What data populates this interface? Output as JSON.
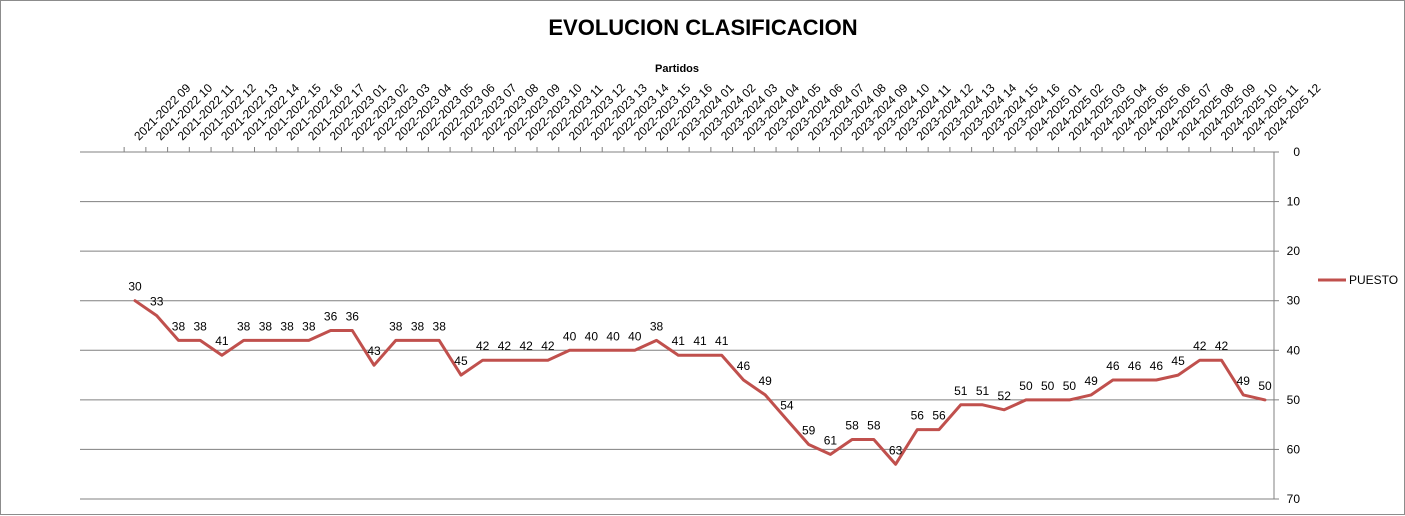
{
  "chart_data": {
    "type": "line",
    "title": "EVOLUCION CLASIFICACION",
    "xlabel": "Partidos",
    "ylabel": "",
    "ylim": [
      0,
      70
    ],
    "y_reversed": true,
    "y_ticks": [
      0,
      10,
      20,
      30,
      40,
      50,
      60,
      70
    ],
    "x_axis_position": "top",
    "y_axis_position": "right",
    "grid": "horizontal",
    "legend": "right",
    "categories": [
      "2021-2022 09",
      "2021-2022 10",
      "2021-2022 11",
      "2021-2022 12",
      "2021-2022 13",
      "2021-2022 14",
      "2021-2022 15",
      "2021-2022 16",
      "2021-2022 17",
      "2022-2023 01",
      "2022-2023 02",
      "2022-2023 03",
      "2022-2023 04",
      "2022-2023 05",
      "2022-2023 06",
      "2022-2023 07",
      "2022-2023 08",
      "2022-2023 09",
      "2022-2023 10",
      "2022-2023 11",
      "2022-2023 12",
      "2022-2023 13",
      "2022-2023 14",
      "2022-2023 15",
      "2022-2023 16",
      "2023-2024 01",
      "2023-2024 02",
      "2023-2024 03",
      "2023-2024 04",
      "2023-2024 05",
      "2023-2024 06",
      "2023-2024 07",
      "2023-2024 08",
      "2023-2024 09",
      "2023-2024 10",
      "2023-2024 11",
      "2023-2024 12",
      "2023-2024 13",
      "2023-2024 14",
      "2023-2024 15",
      "2023-2024 16",
      "2024-2025 01",
      "2024-2025 02",
      "2024-2025 03",
      "2024-2025 04",
      "2024-2025 05",
      "2024-2025 06",
      "2024-2025 07",
      "2024-2025 08",
      "2024-2025 09",
      "2024-2025 10",
      "2024-2025 11",
      "2024-2025 12"
    ],
    "series": [
      {
        "name": "PUESTO",
        "color": "#c0504d",
        "values": [
          30,
          33,
          38,
          38,
          41,
          38,
          38,
          38,
          38,
          36,
          36,
          43,
          38,
          38,
          38,
          45,
          42,
          42,
          42,
          42,
          40,
          40,
          40,
          40,
          38,
          41,
          41,
          41,
          46,
          49,
          54,
          59,
          61,
          58,
          58,
          63,
          56,
          56,
          51,
          51,
          52,
          50,
          50,
          50,
          49,
          46,
          46,
          46,
          45,
          42,
          42,
          49,
          50
        ]
      }
    ]
  }
}
